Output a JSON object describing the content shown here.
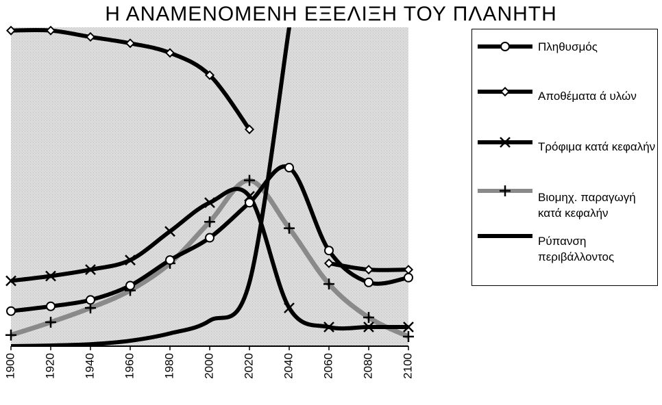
{
  "chart_data": {
    "type": "line",
    "title": "Η ΑΝΑΜΕΝΟΜΕΝΗ ΕΞΕΛΙΞΗ ΤΟΥ ΠΛΑΝΗΤΗ",
    "xlabel": "",
    "ylabel": "",
    "x": [
      1900,
      1920,
      1940,
      1960,
      1980,
      2000,
      2020,
      2040,
      2060,
      2080,
      2100
    ],
    "xlim": [
      1900,
      2100
    ],
    "ylim": [
      0,
      100
    ],
    "grid": false,
    "legend": "right",
    "series": [
      {
        "name": "Πληθυσμός",
        "marker": "circle",
        "color": "#000000",
        "values": [
          11,
          12.5,
          14.5,
          19,
          27,
          34,
          45,
          56,
          30,
          20,
          21.5
        ]
      },
      {
        "name": "Αποθέματα ά υλών",
        "marker": "diamond",
        "color": "#000000",
        "values": [
          99,
          99,
          97,
          95,
          92,
          85,
          68,
          null,
          26,
          24,
          24
        ]
      },
      {
        "name": "Τρόφιμα κατά κεφαλήν",
        "marker": "x",
        "color": "#000000",
        "values": [
          20.5,
          22,
          24,
          27,
          36,
          45,
          47,
          12,
          6,
          6,
          6
        ]
      },
      {
        "name": "Βιομηχ. παραγωγή κατά κεφαλήν",
        "marker": "plus",
        "color": "#8a8a8a",
        "values": [
          3.5,
          7.5,
          12,
          17.5,
          26,
          39,
          52,
          37,
          19.5,
          9,
          3
        ]
      },
      {
        "name": "Ρύπανση περιβάλλοντος",
        "marker": "none",
        "color": "#000000",
        "values": [
          0,
          0.2,
          0.6,
          1.7,
          4,
          8,
          20,
          100,
          null,
          null,
          null
        ]
      }
    ],
    "x_ticks": [
      "1900",
      "1920",
      "1940",
      "1960",
      "1980",
      "2000",
      "2020",
      "2040",
      "2060",
      "2080",
      "2100"
    ],
    "background": "#e2e2e2"
  }
}
